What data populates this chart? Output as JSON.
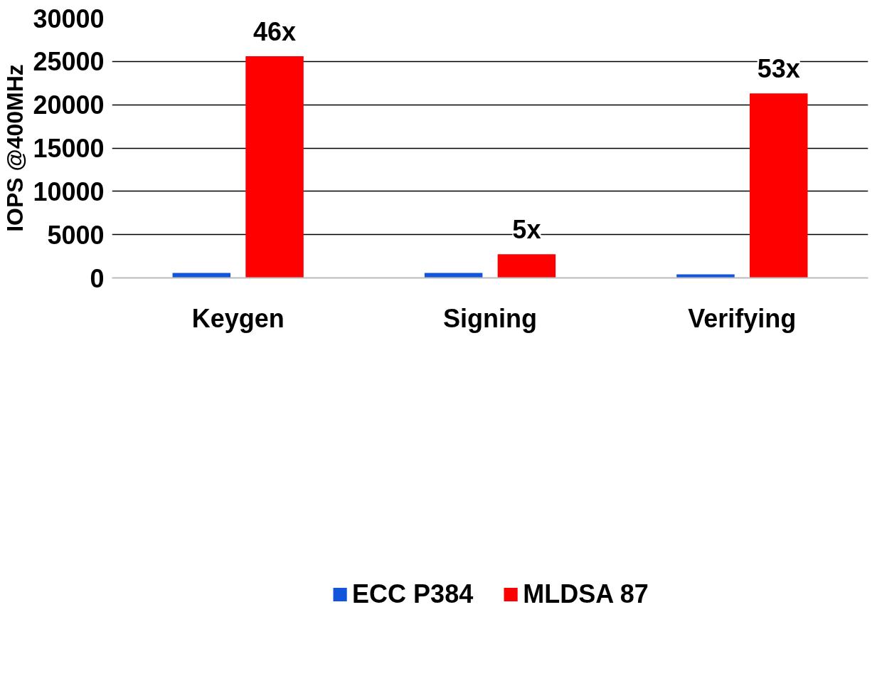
{
  "chart_data": {
    "type": "bar",
    "ylabel": "IOPS @400MHz",
    "categories": [
      "Keygen",
      "Signing",
      "Verifying"
    ],
    "series": [
      {
        "name": "ECC P384",
        "color": "#1155dd",
        "values": [
          580,
          580,
          420
        ]
      },
      {
        "name": "MLDSA 87",
        "color": "#ff0000",
        "values": [
          25600,
          2730,
          21300
        ]
      }
    ],
    "annotations": [
      "46x",
      "5x",
      "53x"
    ],
    "ylim": [
      0,
      30000
    ],
    "yticks": [
      0,
      5000,
      10000,
      15000,
      20000,
      25000,
      30000
    ],
    "grid": "y",
    "legend": "bottom"
  }
}
